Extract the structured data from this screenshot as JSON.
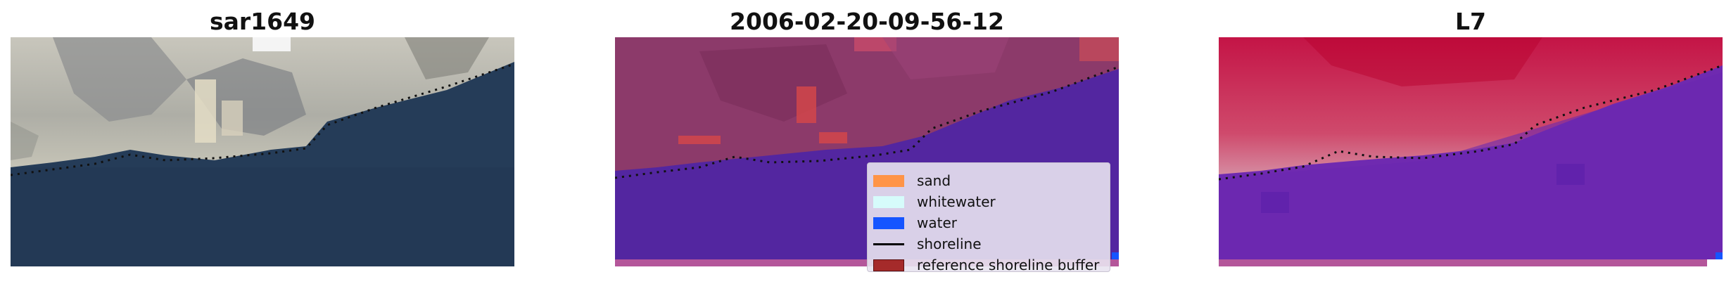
{
  "panels": [
    {
      "title": "sar1649"
    },
    {
      "title": "2006-02-20-09-56-12"
    },
    {
      "title": "L7"
    }
  ],
  "legend": {
    "items": [
      {
        "label": "sand",
        "color": "#ff9447"
      },
      {
        "label": "whitewater",
        "color": "#d6fbfb"
      },
      {
        "label": "water",
        "color": "#1655ff"
      },
      {
        "label": "shoreline",
        "color": "#000000"
      },
      {
        "label": "reference shoreline buffer",
        "color": "#a52a2a"
      }
    ]
  },
  "colors": {
    "sea_rgb": "#253c58",
    "land_rgb": "#b7b7ab",
    "water_class": "#5326a0",
    "land_class": "#8c3a6a",
    "ndwi_land": "#c8224e",
    "ndwi_water": "#6f2ab0"
  }
}
